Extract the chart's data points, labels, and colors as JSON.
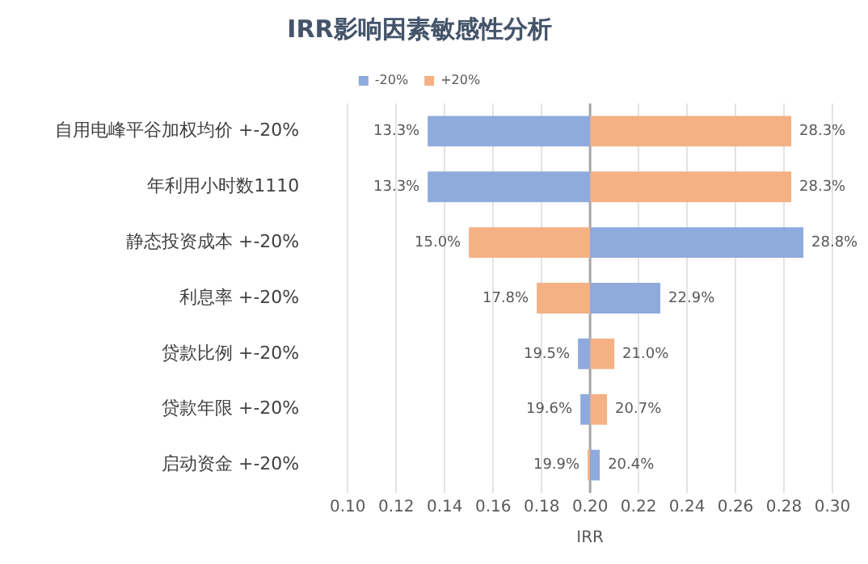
{
  "chart_data": {
    "type": "bar",
    "orientation": "horizontal",
    "title": "IRR影响因素敏感性分析",
    "xlabel": "IRR",
    "categories": [
      "自用电峰平谷加权均价 +-20%",
      "年利用小时数1110",
      "静态投资成本 +-20%",
      "利息率 +-20%",
      "贷款比例 +-20%",
      "贷款年限 +-20%",
      "启动资金 +-20%"
    ],
    "series": [
      {
        "name": "-20%",
        "color": "#8faadc",
        "base": [
          0.2,
          0.2,
          0.2,
          0.2,
          0.2,
          0.2,
          0.2
        ],
        "values": [
          -0.067,
          -0.067,
          0.088,
          0.029,
          -0.005,
          -0.004,
          0.004
        ],
        "value_labels": [
          "13.3%",
          "13.3%",
          "28.8%",
          "22.9%",
          "19.5%",
          "19.6%",
          "20.4%"
        ]
      },
      {
        "name": "+20%",
        "color": "#f4b183",
        "base": [
          0.2,
          0.2,
          0.2,
          0.2,
          0.2,
          0.2,
          0.2
        ],
        "values": [
          0.083,
          0.083,
          -0.05,
          -0.022,
          0.01,
          0.007,
          -0.001
        ],
        "value_labels": [
          "28.3%",
          "28.3%",
          "15.0%",
          "17.8%",
          "21.0%",
          "20.7%",
          "19.9%"
        ]
      }
    ],
    "xlim": [
      0.1,
      0.3
    ],
    "xticks": [
      {
        "value": 0.1,
        "label": "0.10"
      },
      {
        "value": 0.12,
        "label": "0.12"
      },
      {
        "value": 0.14,
        "label": "0.14"
      },
      {
        "value": 0.16,
        "label": "0.16"
      },
      {
        "value": 0.18,
        "label": "0.18"
      },
      {
        "value": 0.2,
        "label": "0.20"
      },
      {
        "value": 0.22,
        "label": "0.22"
      },
      {
        "value": 0.24,
        "label": "0.24"
      },
      {
        "value": 0.26,
        "label": "0.26"
      },
      {
        "value": 0.28,
        "label": "0.28"
      },
      {
        "value": 0.3,
        "label": "0.30"
      }
    ],
    "ref_lines": [
      {
        "axis": "x",
        "value": 0.2,
        "color": "#a6a6a6"
      }
    ],
    "grid": "x",
    "legend": "top"
  }
}
